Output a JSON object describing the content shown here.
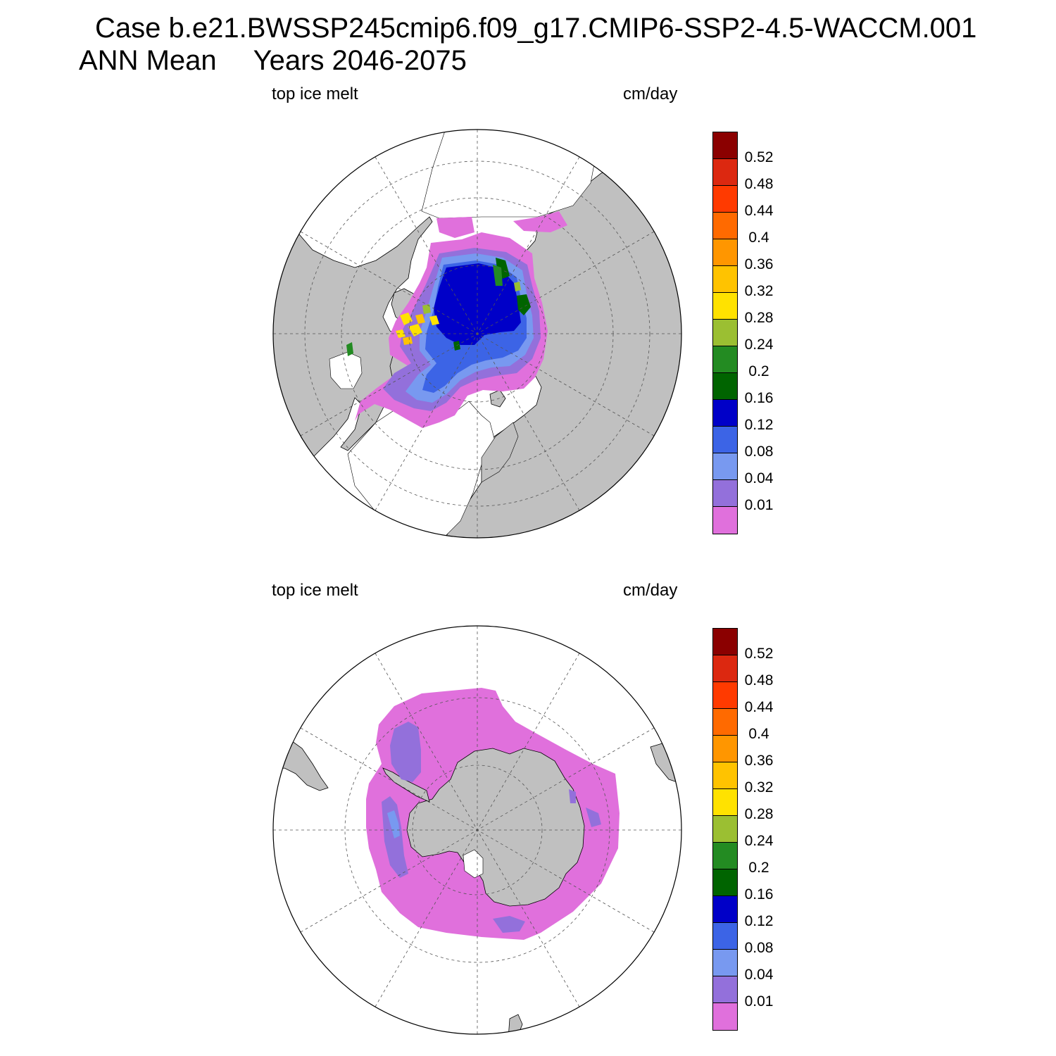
{
  "figure": {
    "title_case": "Case b.e21.BWSSP245cmip6.f09_g17.CMIP6-SSP2-4.5-WACCM.001",
    "title_mean": "ANN Mean",
    "title_years": "Years 2046-2075"
  },
  "panels": [
    {
      "hemisphere": "north",
      "variable_label": "top ice melt",
      "units_label": "cm/day"
    },
    {
      "hemisphere": "south",
      "variable_label": "top ice melt",
      "units_label": "cm/day"
    }
  ],
  "colorbar": {
    "levels": [
      "0.52",
      "0.48",
      "0.44",
      "0.4",
      "0.36",
      "0.32",
      "0.28",
      "0.24",
      "0.2",
      "0.16",
      "0.12",
      "0.08",
      "0.04",
      "0.01"
    ],
    "colors": [
      "#8b0000",
      "#dc2810",
      "#ff3a00",
      "#ff6a00",
      "#ff9600",
      "#ffc300",
      "#ffe200",
      "#9bbf32",
      "#238b22",
      "#006400",
      "#0000c8",
      "#3c64e6",
      "#7899f0",
      "#9370db",
      "#e070dc"
    ]
  },
  "colors": {
    "land": "#c0c0c0",
    "ocean": "#ffffff",
    "ice_min": "#e070dc"
  }
}
